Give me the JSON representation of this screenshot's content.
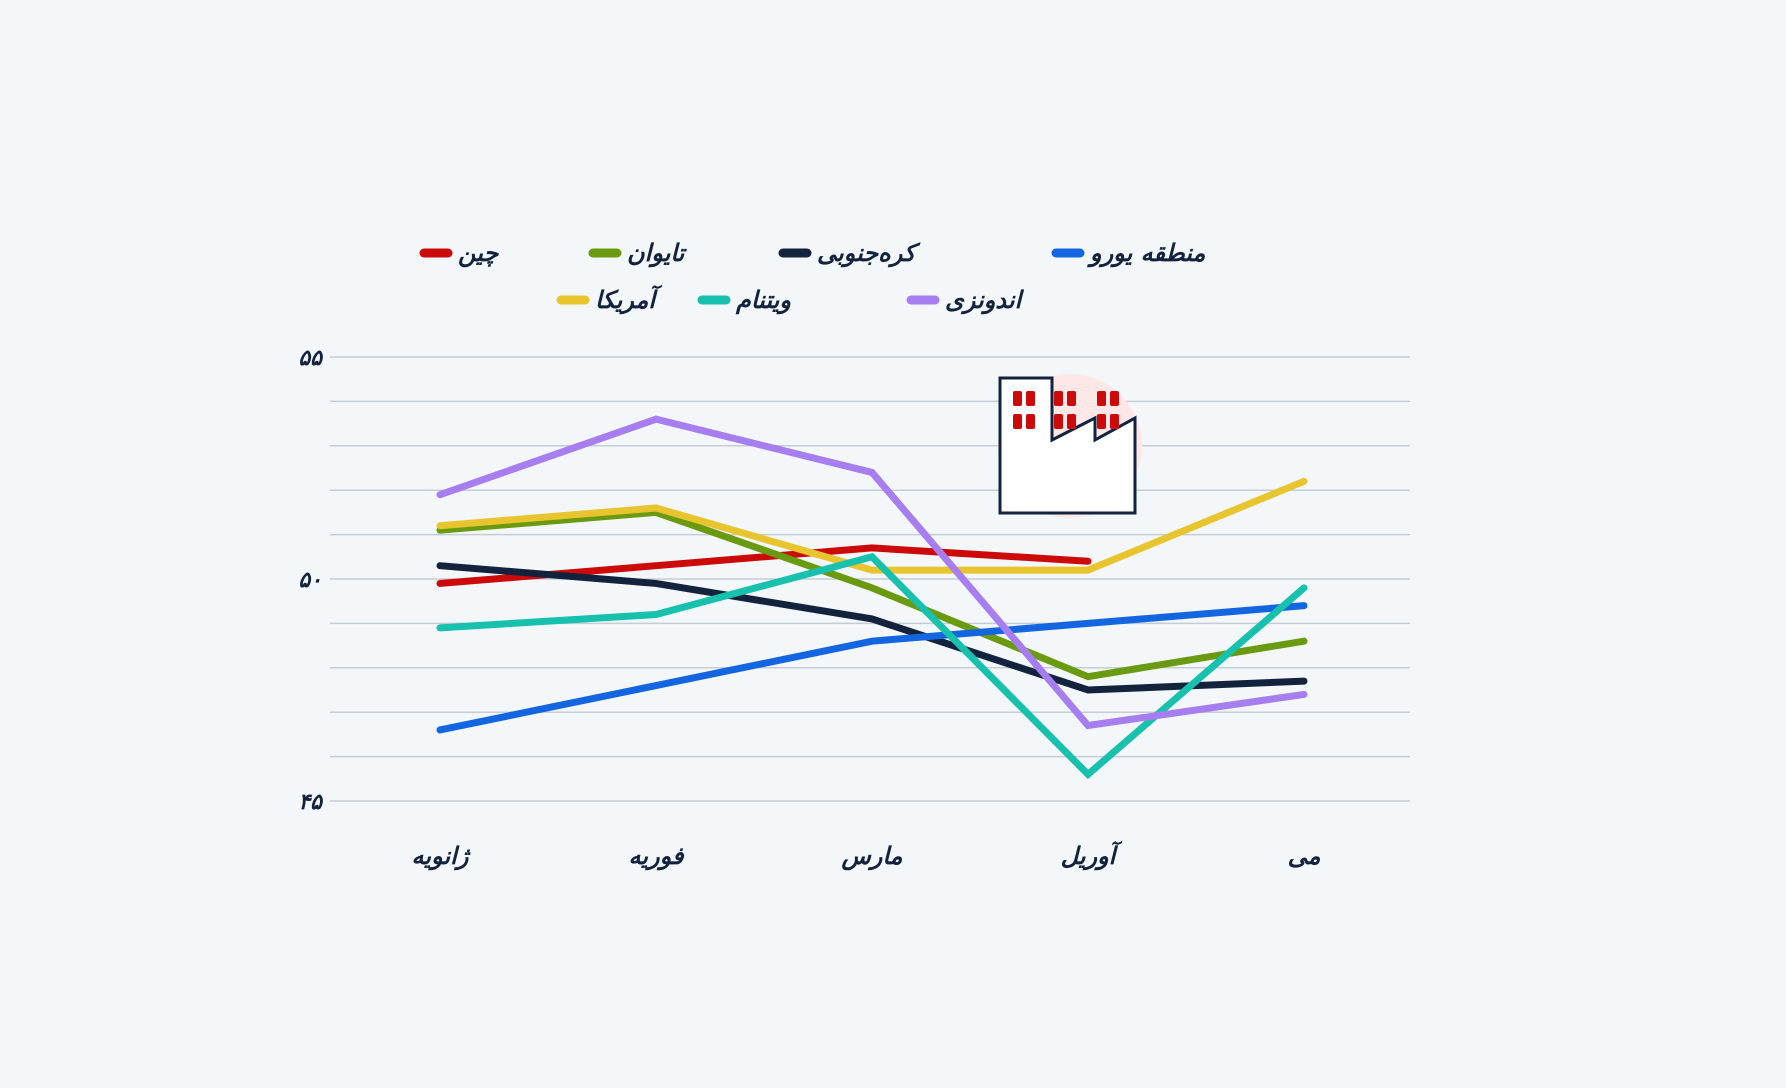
{
  "chart_data": {
    "type": "line",
    "title": "",
    "xlabel": "",
    "ylabel": "",
    "categories": [
      "ژانویه",
      "فوریه",
      "مارس",
      "آوریل",
      "می"
    ],
    "ylim": [
      45,
      55
    ],
    "y_ticks": [
      45,
      50,
      55
    ],
    "y_tick_labels": [
      "۴۵",
      "۵۰",
      "۵۵"
    ],
    "grid": true,
    "legend_position": "top",
    "series": [
      {
        "name": "چین",
        "color": "#cc0a0a",
        "values": [
          49.9,
          50.3,
          50.7,
          50.4,
          null
        ]
      },
      {
        "name": "تایوان",
        "color": "#6a9a10",
        "values": [
          51.1,
          51.5,
          49.8,
          47.8,
          48.6
        ]
      },
      {
        "name": "کره‌جنوبی",
        "color": "#14233d",
        "values": [
          50.3,
          49.9,
          49.1,
          47.5,
          47.7
        ]
      },
      {
        "name": "منطقه یورو",
        "color": "#1366e0",
        "values": [
          46.6,
          47.6,
          48.6,
          49.0,
          49.4
        ]
      },
      {
        "name": "آمریکا",
        "color": "#e8c52e",
        "values": [
          51.2,
          51.6,
          50.2,
          50.2,
          52.2
        ]
      },
      {
        "name": "ویتنام",
        "color": "#17c1ae",
        "values": [
          48.9,
          49.2,
          50.5,
          45.6,
          49.8
        ]
      },
      {
        "name": "اندونزی",
        "color": "#a67ef0",
        "values": [
          51.9,
          53.6,
          52.4,
          46.7,
          47.4
        ]
      }
    ]
  },
  "icon": {
    "name": "factory-icon",
    "accent": "#cc0a0a",
    "outline": "#14233d",
    "backdrop": "#fde7e7"
  }
}
